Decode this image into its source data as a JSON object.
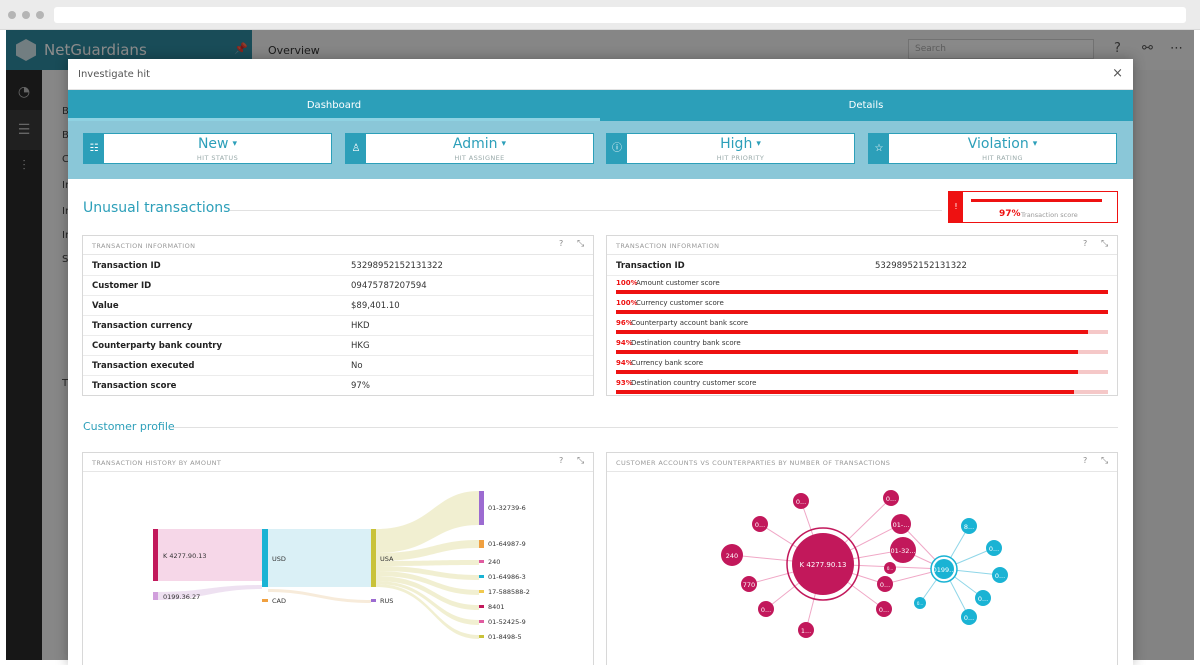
{
  "app": {
    "brand": "NetGuardians",
    "page_title": "Overview",
    "search_placeholder": "Search",
    "list_letters": [
      "B",
      "B",
      "C",
      "In",
      "In",
      "In",
      "S",
      "Th"
    ]
  },
  "modal": {
    "title": "Investigate hit",
    "close": "×",
    "tabs": [
      {
        "label": "Dashboard",
        "active": true
      },
      {
        "label": "Details",
        "active": false
      }
    ],
    "selectors": [
      {
        "value": "New",
        "label": "HIT STATUS",
        "icon": "checklist-icon"
      },
      {
        "value": "Admin",
        "label": "HIT ASSIGNEE",
        "icon": "user-icon"
      },
      {
        "value": "High",
        "label": "HIT PRIORITY",
        "icon": "alert-circle-icon"
      },
      {
        "value": "Violation",
        "label": "HIT RATING",
        "icon": "star-icon"
      }
    ]
  },
  "unusual": {
    "title": "Unusual transactions",
    "score_pct": "97%",
    "score_label": "Transaction score",
    "score_fraction": 0.97
  },
  "info_panel": {
    "title": "TRANSACTION INFORMATION",
    "rows": [
      {
        "k": "Transaction ID",
        "v": "53298952152131322"
      },
      {
        "k": "Customer ID",
        "v": "09475787207594"
      },
      {
        "k": "Value",
        "v": "$89,401.10"
      },
      {
        "k": "Transaction currency",
        "v": "HKD"
      },
      {
        "k": "Counterparty bank country",
        "v": "HKG"
      },
      {
        "k": "Transaction executed",
        "v": "No"
      },
      {
        "k": "Transaction score",
        "v": "97%"
      }
    ]
  },
  "score_panel": {
    "title": "TRANSACTION INFORMATION",
    "id_label": "Transaction ID",
    "id_value": "53298952152131322",
    "scores": [
      {
        "pct": "100%",
        "name": "Amount customer score",
        "value": 1.0
      },
      {
        "pct": "100%",
        "name": "Currency customer score",
        "value": 1.0
      },
      {
        "pct": "96%",
        "name": "Counterparty account bank score",
        "value": 0.96
      },
      {
        "pct": "94%",
        "name": "Destination country bank score",
        "value": 0.94
      },
      {
        "pct": "94%",
        "name": "Currency bank score",
        "value": 0.94
      },
      {
        "pct": "93%",
        "name": "Destination country customer score",
        "value": 0.93
      }
    ]
  },
  "profile": {
    "title": "Customer profile",
    "history_title": "TRANSACTION HISTORY BY AMOUNT",
    "network_title": "CUSTOMER ACCOUNTS VS COUNTERPARTIES BY NUMBER OF TRANSACTIONS"
  },
  "sankey": {
    "sources": [
      "K 4277.90.13",
      "0199.36.27"
    ],
    "currencies": [
      "USD",
      "CAD"
    ],
    "countries": [
      "USA",
      "RUS"
    ],
    "targets": [
      "01-32739-6",
      "01-64987-9",
      "240",
      "01-64986-3",
      "17-588588-2",
      "8401",
      "01-52425-9",
      "01-8498-5"
    ]
  },
  "network": {
    "center": "K 4277.90.13",
    "secondary": "0199...",
    "magenta_nodes": [
      "0...",
      "0...",
      "240",
      "770",
      "0...",
      "1...",
      "0...",
      "0...",
      "01-...",
      "01-32...",
      "0...",
      "0..."
    ],
    "cyan_nodes": [
      "8...",
      "0...",
      "0...",
      "0...",
      "0...",
      "0..."
    ],
    "colors": {
      "magenta": "#c2185b",
      "cyan": "#1ab3d4"
    }
  },
  "colors": {
    "accent": "#2c9fb9",
    "danger": "#e11111"
  },
  "icons": {
    "help": "?",
    "expand": "⤡"
  }
}
